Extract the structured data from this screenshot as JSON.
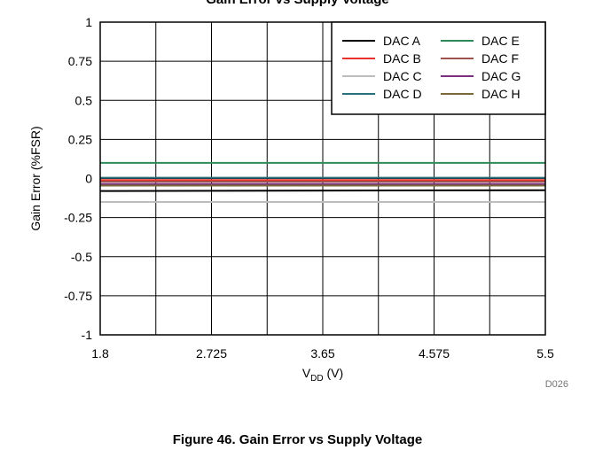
{
  "header_text": "Gain Error vs Supply Voltage",
  "caption": "Figure 46. Gain Error vs Supply Voltage",
  "figure_code": "D026",
  "chart_data": {
    "type": "line",
    "xlabel_main": "V",
    "xlabel_sub": "DD",
    "xlabel_unit": " (V)",
    "ylabel": "Gain Error (%FSR)",
    "xlim": [
      1.8,
      5.5
    ],
    "ylim": [
      -1,
      1
    ],
    "x_ticks": [
      1.8,
      2.725,
      3.65,
      4.575,
      5.5
    ],
    "x_tick_labels": [
      "1.8",
      "2.725",
      "3.65",
      "4.575",
      "5.5"
    ],
    "y_ticks": [
      1,
      0.75,
      0.5,
      0.25,
      0,
      -0.25,
      -0.5,
      -0.75,
      -1
    ],
    "y_tick_labels": [
      "1",
      "0.75",
      "0.5",
      "0.25",
      "0",
      "-0.25",
      "-0.5",
      "-0.75",
      "-1"
    ],
    "grid": true,
    "legend_position": "top-right",
    "series": [
      {
        "name": "DAC A",
        "color": "#000000",
        "x": [
          1.8,
          5.5
        ],
        "y": [
          -0.08,
          -0.075
        ]
      },
      {
        "name": "DAC B",
        "color": "#e8322d",
        "x": [
          1.8,
          5.5
        ],
        "y": [
          -0.01,
          -0.01
        ]
      },
      {
        "name": "DAC C",
        "color": "#bdbdbd",
        "x": [
          1.8,
          5.5
        ],
        "y": [
          -0.15,
          -0.15
        ]
      },
      {
        "name": "DAC D",
        "color": "#2a6f7c",
        "x": [
          1.8,
          5.5
        ],
        "y": [
          0.005,
          0.005
        ]
      },
      {
        "name": "DAC E",
        "color": "#2e8b57",
        "x": [
          1.8,
          5.5
        ],
        "y": [
          0.1,
          0.1
        ]
      },
      {
        "name": "DAC F",
        "color": "#a0524d",
        "x": [
          1.8,
          5.5
        ],
        "y": [
          -0.02,
          -0.02
        ]
      },
      {
        "name": "DAC G",
        "color": "#7b2f7f",
        "x": [
          1.8,
          5.5
        ],
        "y": [
          -0.035,
          -0.035
        ]
      },
      {
        "name": "DAC H",
        "color": "#7a6a3a",
        "x": [
          1.8,
          5.5
        ],
        "y": [
          -0.045,
          -0.045
        ]
      }
    ]
  }
}
